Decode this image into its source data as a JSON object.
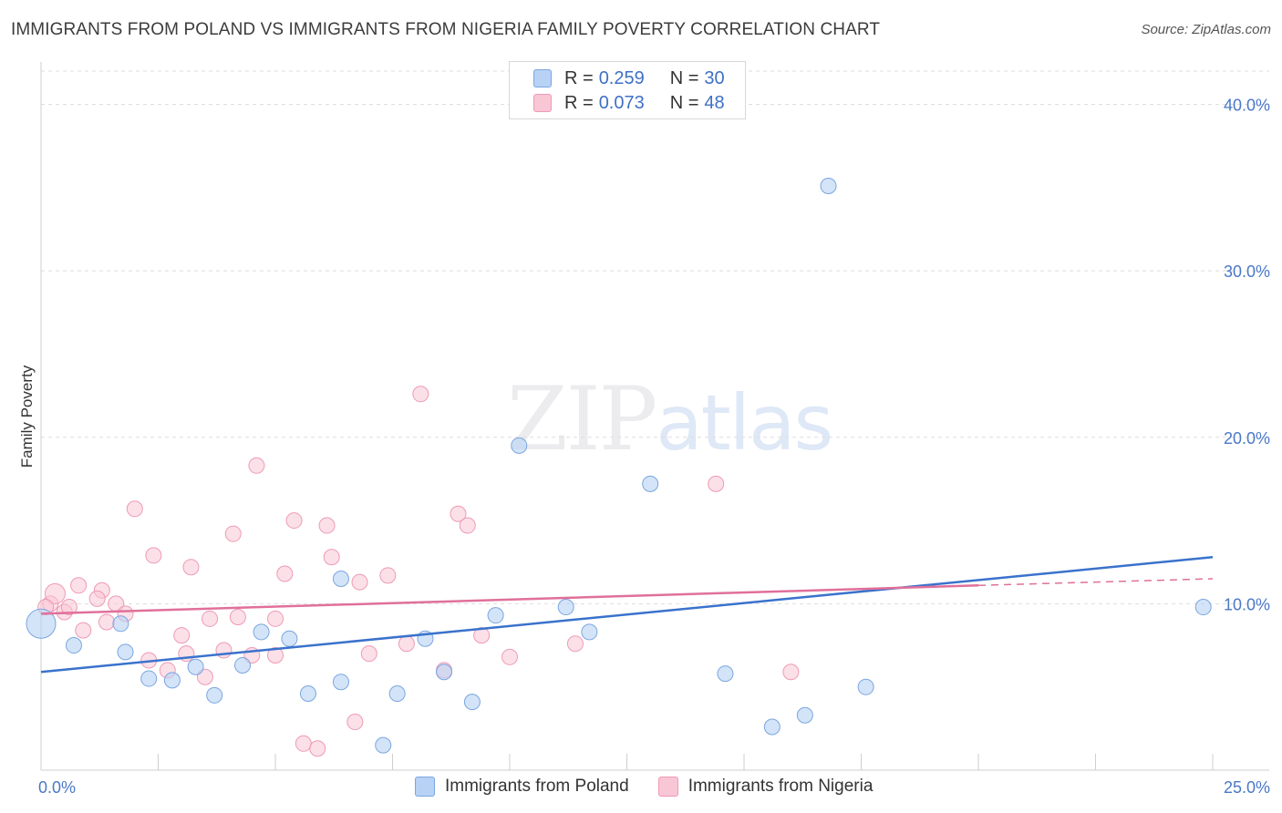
{
  "title": "IMMIGRANTS FROM POLAND VS IMMIGRANTS FROM NIGERIA FAMILY POVERTY CORRELATION CHART",
  "source": "Source: ZipAtlas.com",
  "watermark": {
    "zip": "ZIP",
    "atlas": "atlas"
  },
  "legend": {
    "rows": [
      {
        "r_label": "R =",
        "r_value": "0.259",
        "n_label": "N =",
        "n_value": "30"
      },
      {
        "r_label": "R =",
        "r_value": "0.073",
        "n_label": "N =",
        "n_value": "48"
      }
    ]
  },
  "colors": {
    "poland_fill": "#b7d2f4",
    "poland_stroke": "#7aa6e0",
    "poland_line": "#3a72cc",
    "nigeria_fill": "#f9c6d6",
    "nigeria_stroke": "#ee9ab6",
    "nigeria_line": "#e0709a",
    "tick_label": "#4a78c8"
  },
  "chart_data": {
    "type": "scatter",
    "title": "IMMIGRANTS FROM POLAND VS IMMIGRANTS FROM NIGERIA FAMILY POVERTY CORRELATION CHART",
    "xlabel": "",
    "ylabel": "Family Poverty",
    "xlim": [
      0,
      25
    ],
    "ylim": [
      0,
      42
    ],
    "x_tick_labels": [
      "0.0%",
      "25.0%"
    ],
    "y_ticks": [
      10,
      20,
      30,
      40
    ],
    "y_tick_labels": [
      "10.0%",
      "20.0%",
      "30.0%",
      "40.0%"
    ],
    "grid": true,
    "legend_position": "top-center",
    "series": [
      {
        "name": "Immigrants from Poland",
        "points": [
          [
            0.0,
            8.8
          ],
          [
            0.7,
            7.5
          ],
          [
            1.7,
            8.8
          ],
          [
            1.8,
            7.1
          ],
          [
            2.3,
            5.5
          ],
          [
            2.8,
            5.4
          ],
          [
            3.3,
            6.2
          ],
          [
            3.7,
            4.5
          ],
          [
            4.3,
            6.3
          ],
          [
            4.7,
            8.3
          ],
          [
            5.3,
            7.9
          ],
          [
            5.7,
            4.6
          ],
          [
            6.4,
            11.5
          ],
          [
            6.4,
            5.3
          ],
          [
            7.3,
            1.5
          ],
          [
            7.6,
            4.6
          ],
          [
            8.2,
            7.9
          ],
          [
            8.6,
            5.9
          ],
          [
            9.2,
            4.1
          ],
          [
            9.7,
            9.3
          ],
          [
            10.2,
            19.5
          ],
          [
            11.2,
            9.8
          ],
          [
            11.7,
            8.3
          ],
          [
            13.0,
            17.2
          ],
          [
            14.6,
            5.8
          ],
          [
            15.6,
            2.6
          ],
          [
            16.3,
            3.3
          ],
          [
            16.8,
            35.1
          ],
          [
            17.6,
            5.0
          ],
          [
            24.8,
            9.8
          ]
        ],
        "trend": {
          "x": [
            0,
            25
          ],
          "y": [
            5.9,
            12.8
          ]
        }
      },
      {
        "name": "Immigrants from Nigeria",
        "points": [
          [
            0.2,
            10.0
          ],
          [
            0.3,
            10.6
          ],
          [
            0.5,
            9.5
          ],
          [
            0.6,
            9.8
          ],
          [
            0.8,
            11.1
          ],
          [
            0.9,
            8.4
          ],
          [
            1.3,
            10.8
          ],
          [
            1.4,
            8.9
          ],
          [
            1.6,
            10.0
          ],
          [
            1.8,
            9.4
          ],
          [
            2.0,
            15.7
          ],
          [
            2.3,
            6.6
          ],
          [
            2.4,
            12.9
          ],
          [
            2.7,
            6.0
          ],
          [
            3.0,
            8.1
          ],
          [
            3.1,
            7.0
          ],
          [
            3.2,
            12.2
          ],
          [
            3.5,
            5.6
          ],
          [
            3.6,
            9.1
          ],
          [
            3.9,
            7.2
          ],
          [
            4.1,
            14.2
          ],
          [
            4.2,
            9.2
          ],
          [
            4.5,
            6.9
          ],
          [
            4.6,
            18.3
          ],
          [
            5.0,
            9.1
          ],
          [
            5.0,
            6.9
          ],
          [
            5.2,
            11.8
          ],
          [
            5.4,
            15.0
          ],
          [
            5.6,
            1.6
          ],
          [
            5.9,
            1.3
          ],
          [
            6.1,
            14.7
          ],
          [
            6.2,
            12.8
          ],
          [
            6.7,
            2.9
          ],
          [
            6.8,
            11.3
          ],
          [
            7.0,
            7.0
          ],
          [
            7.4,
            11.7
          ],
          [
            7.8,
            7.6
          ],
          [
            8.1,
            22.6
          ],
          [
            8.6,
            6.0
          ],
          [
            8.9,
            15.4
          ],
          [
            9.1,
            14.7
          ],
          [
            9.4,
            8.1
          ],
          [
            10.0,
            6.8
          ],
          [
            11.4,
            7.6
          ],
          [
            14.4,
            17.2
          ],
          [
            16.0,
            5.9
          ],
          [
            0.1,
            9.8
          ],
          [
            1.2,
            10.3
          ]
        ],
        "trend": {
          "x": [
            0,
            20
          ],
          "y": [
            9.4,
            11.1
          ]
        },
        "trend_dashed_extension": {
          "x": [
            20,
            25
          ],
          "y": [
            11.1,
            11.5
          ]
        }
      }
    ]
  },
  "bottom_legend": [
    "Immigrants from Poland",
    "Immigrants from Nigeria"
  ]
}
